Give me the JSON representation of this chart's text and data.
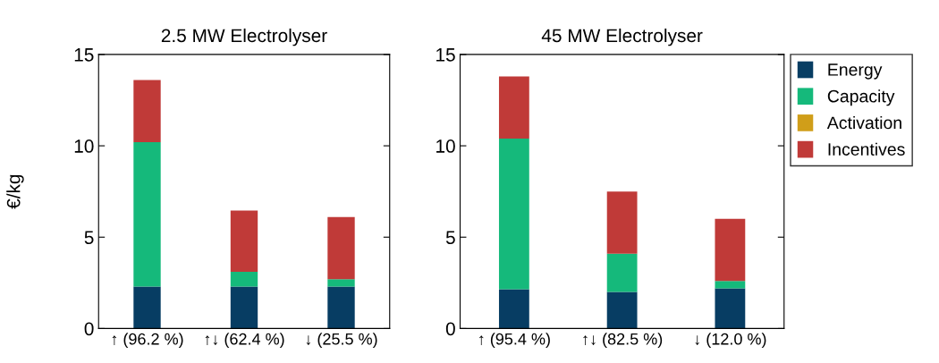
{
  "chart_data": [
    {
      "type": "bar",
      "title": "2.5 MW Electrolyser",
      "ylabel": "€/kg",
      "stacked": true,
      "categories": [
        "↑ (96.2 %)",
        "↑↓ (62.4 %)",
        "↓ (25.5 %)"
      ],
      "ylim": [
        0,
        15
      ],
      "yticks": [
        0,
        5,
        10,
        15
      ],
      "grid": false,
      "legend": false,
      "series": [
        {
          "color": "#073d63",
          "values": [
            2.3,
            2.3,
            2.3
          ]
        },
        {
          "color": "#15b97b",
          "values": [
            7.9,
            0.8,
            0.4
          ]
        },
        {
          "color": "#d09e19",
          "values": [
            0,
            0,
            0
          ]
        },
        {
          "color": "#c03a38",
          "values": [
            3.4,
            3.35,
            3.4
          ]
        }
      ]
    },
    {
      "type": "bar",
      "title": "45 MW Electrolyser",
      "stacked": true,
      "categories": [
        "↑ (95.4 %)",
        "↑↓ (82.5 %)",
        "↓ (12.0 %)"
      ],
      "ylim": [
        0,
        15
      ],
      "yticks": [
        0,
        5,
        10,
        15
      ],
      "grid": false,
      "legend": "right",
      "series": [
        {
          "name": "Energy",
          "color": "#073d63",
          "values": [
            2.15,
            2.0,
            2.2
          ]
        },
        {
          "name": "Capacity",
          "color": "#15b97b",
          "values": [
            8.25,
            2.1,
            0.4
          ]
        },
        {
          "name": "Activation",
          "color": "#d09e19",
          "values": [
            0,
            0,
            0
          ]
        },
        {
          "name": "Incentives",
          "color": "#c03a38",
          "values": [
            3.4,
            3.4,
            3.4
          ]
        }
      ]
    }
  ]
}
